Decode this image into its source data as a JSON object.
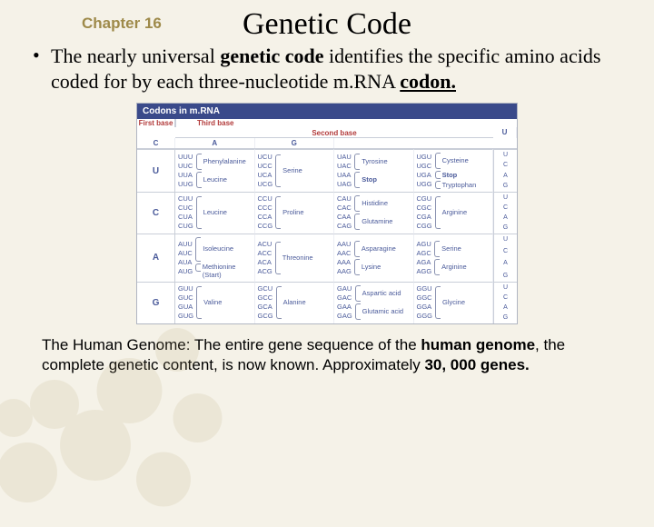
{
  "chapter_label": "Chapter 16",
  "title": "Genetic Code",
  "bullet": {
    "pre": "The nearly universal ",
    "b1": "genetic code",
    "mid": " identifies the specific amino acids coded for by each three-nucleotide m.RNA ",
    "b2": "codon."
  },
  "footer": {
    "pre": "The Human Genome: The entire gene sequence of the ",
    "b1": "human genome",
    "mid": ", the complete genetic content, is now known.   Approximately ",
    "b2": "30, 000 genes."
  },
  "codon_table": {
    "title": "Codons in m.RNA",
    "headers": {
      "first": "First base",
      "second": "Second base",
      "third": "Third base"
    },
    "second_bases": [
      "U",
      "C",
      "A",
      "G"
    ],
    "rows": [
      {
        "first": "U",
        "thirds": [
          "U",
          "C",
          "A",
          "G"
        ],
        "cells": [
          {
            "codons": [
              "UUU",
              "UUC",
              "UUA",
              "UUG"
            ],
            "aas": [
              "Phenylalanine",
              "Leucine"
            ],
            "spans": [
              2,
              2
            ]
          },
          {
            "codons": [
              "UCU",
              "UCC",
              "UCA",
              "UCG"
            ],
            "aas": [
              "Serine"
            ],
            "spans": [
              4
            ]
          },
          {
            "codons": [
              "UAU",
              "UAC",
              "UAA",
              "UAG"
            ],
            "aas": [
              "Tyrosine",
              "Stop"
            ],
            "spans": [
              2,
              2
            ]
          },
          {
            "codons": [
              "UGU",
              "UGC",
              "UGA",
              "UGG"
            ],
            "aas": [
              "Cysteine",
              "Stop",
              "Tryptophan"
            ],
            "spans": [
              2,
              1,
              1
            ]
          }
        ]
      },
      {
        "first": "C",
        "thirds": [
          "U",
          "C",
          "A",
          "G"
        ],
        "cells": [
          {
            "codons": [
              "CUU",
              "CUC",
              "CUA",
              "CUG"
            ],
            "aas": [
              "Leucine"
            ],
            "spans": [
              4
            ]
          },
          {
            "codons": [
              "CCU",
              "CCC",
              "CCA",
              "CCG"
            ],
            "aas": [
              "Proline"
            ],
            "spans": [
              4
            ]
          },
          {
            "codons": [
              "CAU",
              "CAC",
              "CAA",
              "CAG"
            ],
            "aas": [
              "Histidine",
              "Glutamine"
            ],
            "spans": [
              2,
              2
            ]
          },
          {
            "codons": [
              "CGU",
              "CGC",
              "CGA",
              "CGG"
            ],
            "aas": [
              "Arginine"
            ],
            "spans": [
              4
            ]
          }
        ]
      },
      {
        "first": "A",
        "thirds": [
          "U",
          "C",
          "A",
          "G"
        ],
        "cells": [
          {
            "codons": [
              "AUU",
              "AUC",
              "AUA",
              "AUG"
            ],
            "aas": [
              "Isoleucine",
              "Methionine (Start)"
            ],
            "spans": [
              3,
              1
            ]
          },
          {
            "codons": [
              "ACU",
              "ACC",
              "ACA",
              "ACG"
            ],
            "aas": [
              "Threonine"
            ],
            "spans": [
              4
            ]
          },
          {
            "codons": [
              "AAU",
              "AAC",
              "AAA",
              "AAG"
            ],
            "aas": [
              "Asparagine",
              "Lysine"
            ],
            "spans": [
              2,
              2
            ]
          },
          {
            "codons": [
              "AGU",
              "AGC",
              "AGA",
              "AGG"
            ],
            "aas": [
              "Serine",
              "Arginine"
            ],
            "spans": [
              2,
              2
            ]
          }
        ]
      },
      {
        "first": "G",
        "thirds": [
          "U",
          "C",
          "A",
          "G"
        ],
        "cells": [
          {
            "codons": [
              "GUU",
              "GUC",
              "GUA",
              "GUG"
            ],
            "aas": [
              "Valine"
            ],
            "spans": [
              4
            ]
          },
          {
            "codons": [
              "GCU",
              "GCC",
              "GCA",
              "GCG"
            ],
            "aas": [
              "Alanine"
            ],
            "spans": [
              4
            ]
          },
          {
            "codons": [
              "GAU",
              "GAC",
              "GAA",
              "GAG"
            ],
            "aas": [
              "Aspartic acid",
              "Glutamic acid"
            ],
            "spans": [
              2,
              2
            ]
          },
          {
            "codons": [
              "GGU",
              "GGC",
              "GGA",
              "GGG"
            ],
            "aas": [
              "Glycine"
            ],
            "spans": [
              4
            ]
          }
        ]
      }
    ]
  },
  "colors": {
    "header_red": "#b23a3a",
    "table_blue": "#4a5a9a",
    "titlebar": "#3a4a8a"
  }
}
